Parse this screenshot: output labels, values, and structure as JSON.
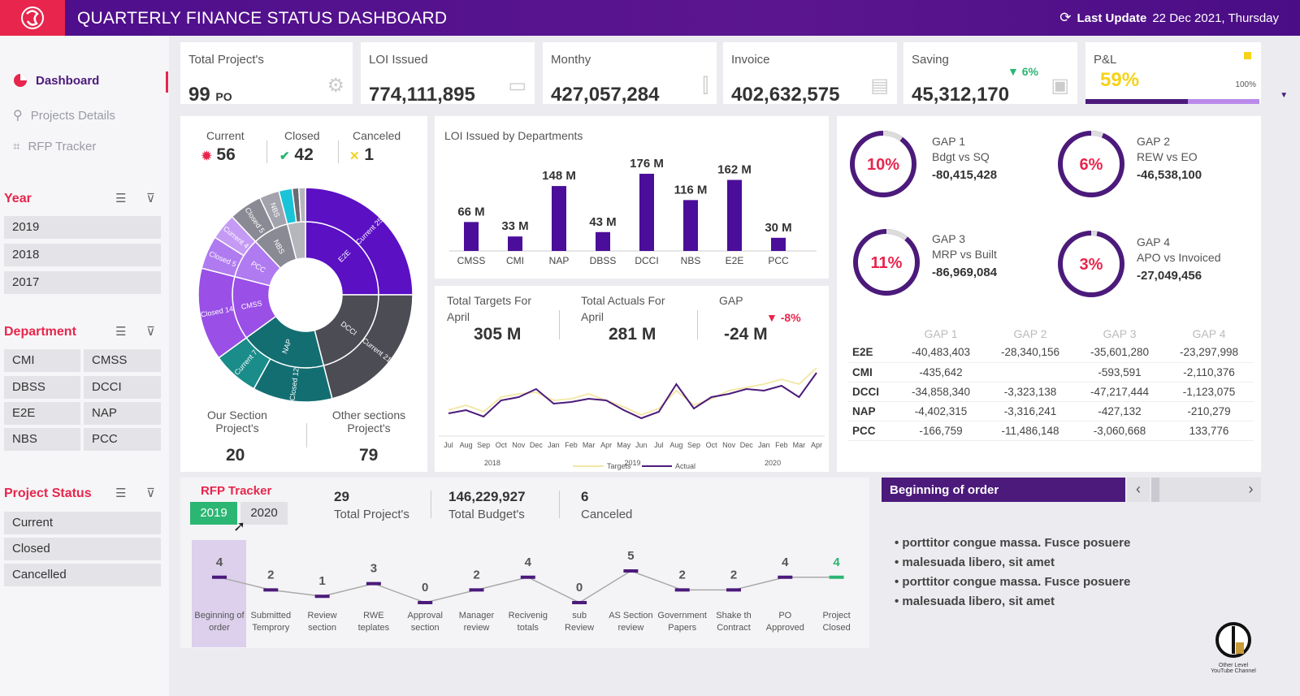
{
  "header": {
    "title": "QUARTERLY FINANCE STATUS DASHBOARD",
    "last_update_label": "Last Update",
    "last_update_value": "22 Dec 2021, Thursday"
  },
  "nav": [
    {
      "label": "Dashboard"
    },
    {
      "label": "Projects Details"
    },
    {
      "label": "RFP Tracker"
    }
  ],
  "filters": {
    "year": {
      "title": "Year",
      "options": [
        "2019",
        "2018",
        "2017"
      ]
    },
    "department": {
      "title": "Department",
      "options": [
        "CMI",
        "CMSS",
        "DBSS",
        "DCCI",
        "E2E",
        "NAP",
        "NBS",
        "PCC"
      ]
    },
    "status": {
      "title": "Project Status",
      "options": [
        "Current",
        "Closed",
        "Cancelled"
      ]
    }
  },
  "kpis": [
    {
      "label": "Total Project's",
      "value": "99",
      "unit": "PO"
    },
    {
      "label": "LOI Issued",
      "value": "774,111,895"
    },
    {
      "label": "Monthy",
      "value": "427,057,284"
    },
    {
      "label": "Invoice",
      "value": "402,632,575"
    },
    {
      "label": "Saving",
      "value": "45,312,170",
      "change": "▼ 6%"
    },
    {
      "label": "P&L",
      "value": "59%",
      "max": "100%",
      "progress": 0.59
    }
  ],
  "projects": {
    "current_label": "Current",
    "current": "56",
    "closed_label": "Closed",
    "closed": "42",
    "canceled_label": "Canceled",
    "canceled": "1",
    "our_label1": "Our Section",
    "our_label2": "Project's",
    "our_value": "20",
    "other_label1": "Other sections",
    "other_label2": "Project's",
    "other_value": "79"
  },
  "sunburst": {
    "outer": [
      {
        "name": "Current 25",
        "value": 25,
        "color": "#5b10c4"
      },
      {
        "name": "Current 21",
        "value": 21,
        "color": "#4c4c54"
      },
      {
        "name": "Closed 12",
        "value": 12,
        "color": "#136e72"
      },
      {
        "name": "Current 7",
        "value": 7,
        "color": "#1a8c8a"
      },
      {
        "name": "Closed 14",
        "value": 14,
        "color": "#9a4fe6"
      },
      {
        "name": "Closed 5",
        "value": 5,
        "color": "#b07af0"
      },
      {
        "name": "Current 4",
        "value": 4,
        "color": "#c59af5"
      },
      {
        "name": "Closed 5",
        "value": 5,
        "color": "#8a8a94"
      },
      {
        "name": "NBS",
        "value": 3,
        "color": "#a3a3ad"
      },
      {
        "name": "",
        "value": 2,
        "color": "#19c3d8"
      },
      {
        "name": "",
        "value": 1,
        "color": "#6a6a72"
      },
      {
        "name": "",
        "value": 1,
        "color": "#b5b5bc"
      }
    ],
    "inner": [
      {
        "name": "E2E",
        "value": 25,
        "color": "#5b10c4"
      },
      {
        "name": "DCCI",
        "value": 21,
        "color": "#4c4c54"
      },
      {
        "name": "NAP",
        "value": 19,
        "color": "#136e72"
      },
      {
        "name": "CMSS",
        "value": 14,
        "color": "#9a4fe6"
      },
      {
        "name": "PCC",
        "value": 9,
        "color": "#b07af0"
      },
      {
        "name": "NBS",
        "value": 8,
        "color": "#8a8a94"
      },
      {
        "name": "",
        "value": 4,
        "color": "#b5b5bc"
      }
    ]
  },
  "chart_data": [
    {
      "type": "bar",
      "title": "LOI Issued by Departments",
      "categories": [
        "CMSS",
        "CMI",
        "NAP",
        "DBSS",
        "DCCI",
        "NBS",
        "E2E",
        "PCC"
      ],
      "values": [
        66,
        33,
        148,
        43,
        176,
        116,
        162,
        30
      ],
      "data_labels": [
        "66 M",
        "33 M",
        "148 M",
        "43 M",
        "176 M",
        "116 M",
        "162 M",
        "30 M"
      ],
      "ylim": [
        0,
        200
      ]
    },
    {
      "type": "line",
      "title": "",
      "x": [
        "Jul",
        "Aug",
        "Sep",
        "Oct",
        "Nov",
        "Dec",
        "Jan",
        "Feb",
        "Mar",
        "Apr",
        "May",
        "Jun",
        "Jul",
        "Aug",
        "Sep",
        "Oct",
        "Nov",
        "Dec",
        "Jan",
        "Feb",
        "Mar",
        "Apr"
      ],
      "year_labels": [
        "2018",
        "2019",
        "2020"
      ],
      "series": [
        {
          "name": "Targets",
          "values": [
            6,
            9,
            5,
            14,
            16,
            17,
            12,
            13,
            16,
            12,
            8,
            3,
            7,
            18,
            9,
            13,
            18,
            20,
            22,
            25,
            22,
            32
          ]
        },
        {
          "name": "Actual",
          "values": [
            4,
            6,
            2,
            12,
            14,
            19,
            10,
            11,
            13,
            12,
            6,
            1,
            5,
            22,
            7,
            14,
            16,
            19,
            18,
            21,
            14,
            29
          ]
        }
      ],
      "ylim": [
        -5,
        40
      ]
    },
    {
      "type": "line",
      "title": "RFP Tracker",
      "categories": [
        "Beginning of order",
        "Submitted Temprory",
        "Review section",
        "RWE teplates",
        "Approval section",
        "Manager review",
        "Recivenig totals",
        "sub Review",
        "AS Section review",
        "Government Papers",
        "Shake th Contract",
        "PO Approved",
        "Project Closed"
      ],
      "values": [
        4,
        2,
        1,
        3,
        0,
        2,
        4,
        0,
        5,
        2,
        2,
        4,
        4
      ],
      "ylim": [
        0,
        5
      ]
    }
  ],
  "targets": {
    "t_label1": "Total Targets For",
    "t_label2": "April",
    "t_value": "305  M",
    "a_label1": "Total Actuals For",
    "a_label2": "April",
    "a_value": "281  M",
    "gap_label": "GAP",
    "gap_value": "-24 M",
    "gap_change": "▼ -8%",
    "legend_t": "Targets",
    "legend_a": "Actual"
  },
  "gaps": [
    {
      "pct": "10%",
      "value": 0.1,
      "name": "GAP 1",
      "desc": "Bdgt vs SQ",
      "amount": "-80,415,428"
    },
    {
      "pct": "6%",
      "value": 0.06,
      "name": "GAP 2",
      "desc": "REW vs EO",
      "amount": "-46,538,100"
    },
    {
      "pct": "11%",
      "value": 0.11,
      "name": "GAP 3",
      "desc": "MRP vs Built",
      "amount": "-86,969,084"
    },
    {
      "pct": "3%",
      "value": 0.03,
      "name": "GAP 4",
      "desc": "APO vs Invoiced",
      "amount": "-27,049,456"
    }
  ],
  "gap_table": {
    "headers": [
      "",
      "GAP 1",
      "GAP 2",
      "GAP 3",
      "GAP 4"
    ],
    "rows": [
      [
        "E2E",
        "-40,483,403",
        "-28,340,156",
        "-35,601,280",
        "-23,297,998"
      ],
      [
        "CMI",
        "-435,642",
        "",
        "-593,591",
        "-2,110,376"
      ],
      [
        "DCCI",
        "-34,858,340",
        "-3,323,138",
        "-47,217,444",
        "-1,123,075"
      ],
      [
        "NAP",
        "-4,402,315",
        "-3,316,241",
        "-427,132",
        "-210,279"
      ],
      [
        "PCC",
        "-166,759",
        "-11,486,148",
        "-3,060,668",
        "133,776"
      ]
    ]
  },
  "rfp": {
    "title": "RFP Tracker",
    "years": [
      "2019",
      "2020"
    ],
    "total_projects": "29",
    "total_projects_label": "Total Project's",
    "total_budget": "146,229,927",
    "total_budget_label": "Total Budget's",
    "canceled": "6",
    "canceled_label": "Canceled"
  },
  "order": {
    "title": "Beginning of order",
    "bullets": [
      "• porttitor congue massa. Fusce posuere",
      "• malesuada libero, sit amet",
      "• porttitor congue massa. Fusce posuere",
      "• malesuada libero, sit amet"
    ]
  },
  "watermark": "Other Level YouTube Channel",
  "colors": {
    "primary": "#4b1a7b",
    "accent": "#e8254c",
    "green": "#2bb673",
    "yellow": "#f5d318"
  }
}
